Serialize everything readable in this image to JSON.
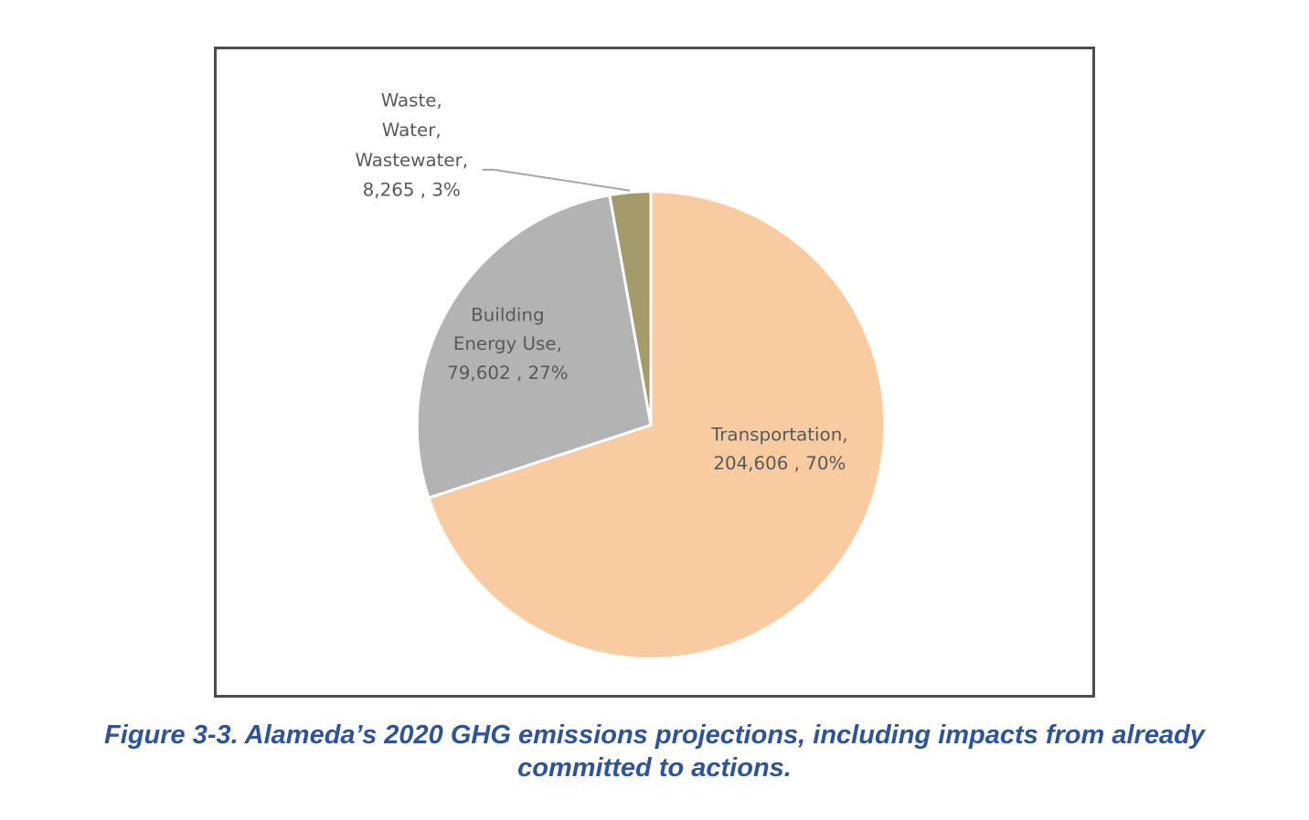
{
  "chart_data": {
    "type": "pie",
    "title": "",
    "slices": [
      {
        "name": "Transportation",
        "value": 204606,
        "percent": 70,
        "color": "#f8cba0",
        "label_lines": [
          "Transportation,",
          "204,606 , 70%"
        ]
      },
      {
        "name": "Building Energy Use",
        "value": 79602,
        "percent": 27,
        "color": "#b3b3b3",
        "label_lines": [
          "Building",
          "Energy Use,",
          "79,602 , 27%"
        ]
      },
      {
        "name": "Waste, Water, Wastewater",
        "value": 8265,
        "percent": 3,
        "color": "#a49a6a",
        "label_lines": [
          "Waste,",
          "Water,",
          "Wastewater,",
          "8,265 , 3%"
        ]
      }
    ]
  },
  "caption": {
    "line1": "Figure 3-3. Alameda’s 2020 GHG emissions projections, including impacts from already",
    "line2": "committed to actions."
  }
}
